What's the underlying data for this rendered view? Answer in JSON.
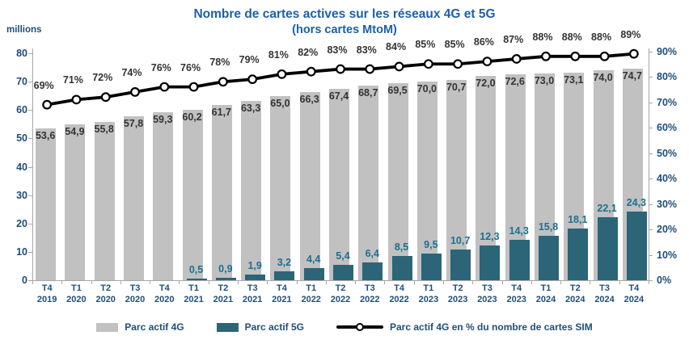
{
  "title": "Nombre de cartes actives sur les réseaux 4G et 5G",
  "subtitle": "(hors cartes MtoM)",
  "left_axis_unit": "millions",
  "colors": {
    "bar_4g": "#c1c1c1",
    "bar_5g": "#2b6577",
    "line": "#000000",
    "marker_fill": "#ffffff",
    "title_text": "#1f5fa6",
    "axis_text": "#1f4e79",
    "value_label_4g": "#333333",
    "value_label_5g": "#1d6f91",
    "axis_line": "#a6a6a6"
  },
  "legend": {
    "items": [
      {
        "label": "Parc actif 4G",
        "swatch": "bar-4g"
      },
      {
        "label": "Parc actif 5G",
        "swatch": "bar-5g"
      },
      {
        "label": "Parc actif 4G en % du nombre de cartes SIM",
        "swatch": "line-marker"
      }
    ]
  },
  "chart_data": {
    "type": "bar",
    "subtype": "bars-with-percentage-line",
    "grid": false,
    "legend_position": "bottom",
    "categories": [
      {
        "quarter": "T4",
        "year": "2019"
      },
      {
        "quarter": "T1",
        "year": "2020"
      },
      {
        "quarter": "T2",
        "year": "2020"
      },
      {
        "quarter": "T3",
        "year": "2020"
      },
      {
        "quarter": "T4",
        "year": "2020"
      },
      {
        "quarter": "T1",
        "year": "2021"
      },
      {
        "quarter": "T2",
        "year": "2021"
      },
      {
        "quarter": "T3",
        "year": "2021"
      },
      {
        "quarter": "T4",
        "year": "2021"
      },
      {
        "quarter": "T1",
        "year": "2022"
      },
      {
        "quarter": "T2",
        "year": "2022"
      },
      {
        "quarter": "T3",
        "year": "2022"
      },
      {
        "quarter": "T4",
        "year": "2022"
      },
      {
        "quarter": "T1",
        "year": "2023"
      },
      {
        "quarter": "T2",
        "year": "2023"
      },
      {
        "quarter": "T3",
        "year": "2023"
      },
      {
        "quarter": "T4",
        "year": "2023"
      },
      {
        "quarter": "T1",
        "year": "2024"
      },
      {
        "quarter": "T2",
        "year": "2024"
      },
      {
        "quarter": "T3",
        "year": "2024"
      },
      {
        "quarter": "T4",
        "year": "2024"
      }
    ],
    "left_axis": {
      "min": 0,
      "max": 80,
      "tick_step": 10,
      "title": "millions"
    },
    "right_axis": {
      "min": 0,
      "max": 90,
      "tick_step": 10,
      "suffix": "%"
    },
    "series": [
      {
        "name": "Parc actif 4G",
        "type": "bar",
        "axis": "left",
        "values": [
          53.6,
          54.9,
          55.8,
          57.8,
          59.3,
          60.2,
          61.7,
          63.3,
          65.0,
          66.3,
          67.4,
          68.7,
          69.5,
          70.0,
          70.7,
          72.0,
          72.6,
          73.0,
          73.1,
          74.0,
          74.7
        ],
        "labels": [
          "53,6",
          "54,9",
          "55,8",
          "57,8",
          "59,3",
          "60,2",
          "61,7",
          "63,3",
          "65,0",
          "66,3",
          "67,4",
          "68,7",
          "69,5",
          "70,0",
          "70,7",
          "72,0",
          "72,6",
          "73,0",
          "73,1",
          "74,0",
          "74,7"
        ]
      },
      {
        "name": "Parc actif 5G",
        "type": "bar",
        "axis": "left",
        "values": [
          null,
          null,
          null,
          null,
          null,
          0.5,
          0.9,
          1.9,
          3.2,
          4.4,
          5.4,
          6.4,
          8.5,
          9.5,
          10.7,
          12.3,
          14.3,
          15.8,
          18.1,
          22.1,
          24.3
        ],
        "labels": [
          null,
          null,
          null,
          null,
          null,
          "0,5",
          "0,9",
          "1,9",
          "3,2",
          "4,4",
          "5,4",
          "6,4",
          "8,5",
          "9,5",
          "10,7",
          "12,3",
          "14,3",
          "15,8",
          "18,1",
          "22,1",
          "24,3"
        ]
      },
      {
        "name": "Parc actif 4G en % du nombre de cartes SIM",
        "type": "line",
        "axis": "right",
        "values": [
          69,
          71,
          72,
          74,
          76,
          76,
          78,
          79,
          81,
          82,
          83,
          83,
          84,
          85,
          85,
          86,
          87,
          88,
          88,
          88,
          89
        ],
        "labels": [
          "69%",
          "71%",
          "72%",
          "74%",
          "76%",
          "76%",
          "78%",
          "79%",
          "81%",
          "82%",
          "83%",
          "83%",
          "84%",
          "85%",
          "85%",
          "86%",
          "87%",
          "88%",
          "88%",
          "88%",
          "89%"
        ]
      }
    ]
  }
}
